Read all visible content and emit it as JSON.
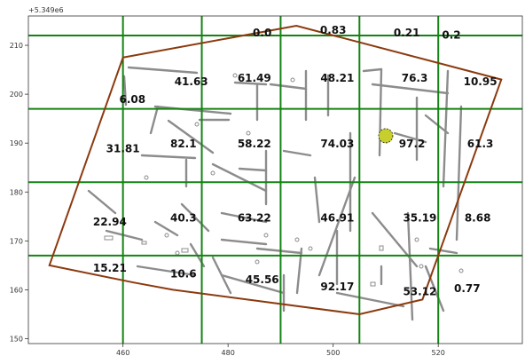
{
  "chart_data": {
    "type": "heatmap",
    "title": "",
    "xlabel": "",
    "ylabel": "",
    "y_offset_text": "+5.349e6",
    "xlim": [
      442,
      536
    ],
    "ylim": [
      149,
      216
    ],
    "x_ticks": [
      460,
      480,
      500,
      520
    ],
    "y_ticks": [
      150,
      160,
      170,
      180,
      190,
      200,
      210
    ],
    "grid_lines_x": [
      460,
      475,
      490,
      505,
      520
    ],
    "grid_lines_y": [
      167,
      182,
      197,
      212
    ],
    "boundary_polygon": [
      [
        446,
        165
      ],
      [
        460,
        207.5
      ],
      [
        493,
        214
      ],
      [
        532,
        203
      ],
      [
        517,
        158
      ],
      [
        505,
        155
      ],
      [
        469.5,
        160
      ],
      [
        462,
        161.5
      ]
    ],
    "marker": {
      "x": 510,
      "y": 191.5,
      "color": "#c7cf2c"
    },
    "values": [
      {
        "label": "0.0",
        "x": 486.5,
        "y": 212.5
      },
      {
        "label": "0.83",
        "x": 500,
        "y": 213
      },
      {
        "label": "0.21",
        "x": 514,
        "y": 212.5
      },
      {
        "label": "0.2",
        "x": 522.5,
        "y": 212
      },
      {
        "label": "6.08",
        "x": 461.8,
        "y": 198.8
      },
      {
        "label": "41.63",
        "x": 473,
        "y": 202.5
      },
      {
        "label": "61.49",
        "x": 485,
        "y": 203.2
      },
      {
        "label": "48.21",
        "x": 500.8,
        "y": 203.2
      },
      {
        "label": "76.3",
        "x": 515.5,
        "y": 203.2
      },
      {
        "label": "10.95",
        "x": 528,
        "y": 202.5
      },
      {
        "label": "31.81",
        "x": 460,
        "y": 188.8
      },
      {
        "label": "82.1",
        "x": 471.5,
        "y": 189.8
      },
      {
        "label": "58.22",
        "x": 485,
        "y": 189.8
      },
      {
        "label": "74.03",
        "x": 500.8,
        "y": 189.8
      },
      {
        "label": "97.2",
        "x": 515,
        "y": 189.8
      },
      {
        "label": "61.3",
        "x": 528,
        "y": 189.8
      },
      {
        "label": "22.94",
        "x": 457.5,
        "y": 173.8
      },
      {
        "label": "40.3",
        "x": 471.5,
        "y": 174.6
      },
      {
        "label": "63.22",
        "x": 485,
        "y": 174.6
      },
      {
        "label": "46.91",
        "x": 500.8,
        "y": 174.6
      },
      {
        "label": "35.19",
        "x": 516.5,
        "y": 174.6
      },
      {
        "label": "8.68",
        "x": 527.5,
        "y": 174.6
      },
      {
        "label": "15.21",
        "x": 457.5,
        "y": 164.3
      },
      {
        "label": "10.6",
        "x": 471.5,
        "y": 163.2
      },
      {
        "label": "45.56",
        "x": 486.5,
        "y": 162
      },
      {
        "label": "92.17",
        "x": 500.8,
        "y": 160.5
      },
      {
        "label": "53.12",
        "x": 516.5,
        "y": 159.5
      },
      {
        "label": "0.77",
        "x": 525.5,
        "y": 160.2
      }
    ]
  },
  "colors": {
    "grid": "#138413",
    "boundary": "#8b3a0f",
    "walls": "#8c8c8c",
    "axes": "#333333"
  }
}
